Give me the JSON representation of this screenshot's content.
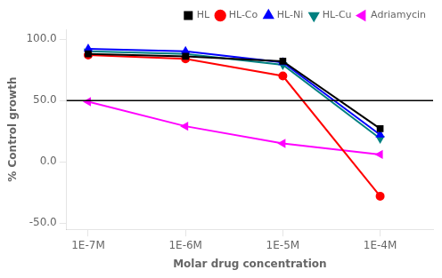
{
  "chart_data": {
    "type": "line",
    "x": [
      1e-07,
      1e-06,
      1e-05,
      0.0001
    ],
    "series": [
      {
        "name": "HL",
        "color": "black",
        "marker": "square",
        "values": [
          88,
          86,
          82,
          27
        ]
      },
      {
        "name": "HL-Co",
        "color": "red",
        "marker": "circle",
        "values": [
          87,
          84,
          70,
          -28
        ]
      },
      {
        "name": "HL-Ni",
        "color": "blue",
        "marker": "triangle-up",
        "values": [
          92,
          90,
          81,
          22
        ]
      },
      {
        "name": "HL-Cu",
        "color": "#008080",
        "marker": "triangle-down",
        "values": [
          90,
          88,
          79,
          19
        ]
      },
      {
        "name": "Adriamycin",
        "color": "magenta",
        "marker": "triangle-left",
        "values": [
          49,
          29,
          15,
          6
        ]
      }
    ],
    "hline": {
      "y": 50.0,
      "color": "black"
    },
    "x_label": "Molar drug concentration",
    "y_label": "% Control growth",
    "log": "x",
    "xlim": [
      6e-08,
      0.00035
    ],
    "xticks": [
      {
        "value": 1e-07,
        "label": "1E-7M"
      },
      {
        "value": 1e-06,
        "label": "1E-6M"
      },
      {
        "value": 1e-05,
        "label": "1E-5M"
      },
      {
        "value": 0.0001,
        "label": "1E-4M"
      }
    ],
    "ylim": [
      -55,
      108
    ],
    "yticks": [
      {
        "value": -50.0,
        "label": "-50.0"
      },
      {
        "value": 0.0,
        "label": "0.0"
      },
      {
        "value": 50.0,
        "label": "50.0"
      },
      {
        "value": 100.0,
        "label": "100.0"
      }
    ],
    "grid": false,
    "legend": "upper right"
  }
}
